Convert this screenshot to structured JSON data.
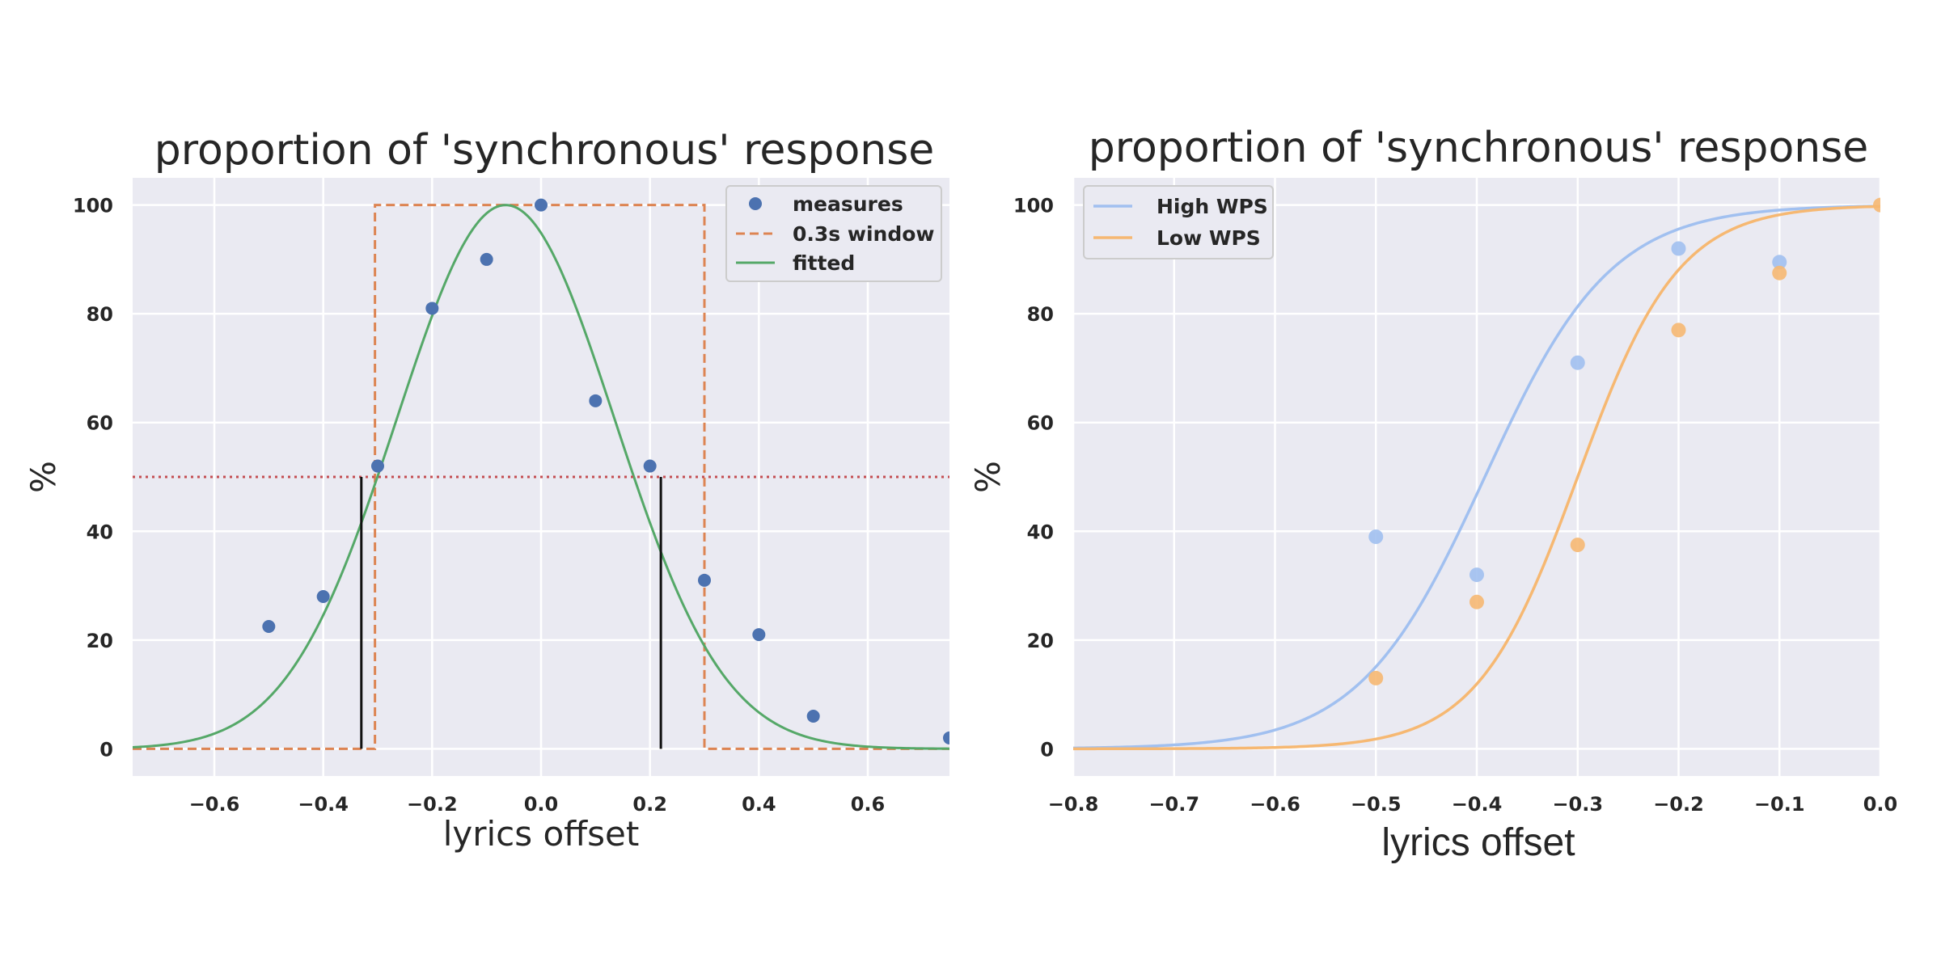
{
  "chart_data": [
    {
      "type": "scatter",
      "title": "proportion of 'synchronous' response",
      "xlabel": "lyrics offset",
      "ylabel": "%",
      "xlim": [
        -0.75,
        0.75
      ],
      "ylim": [
        -5,
        105
      ],
      "xticks": [
        -0.6,
        -0.4,
        -0.2,
        0.0,
        0.2,
        0.4,
        0.6
      ],
      "xtick_labels": [
        "−0.6",
        "−0.4",
        "−0.2",
        "0.0",
        "0.2",
        "0.4",
        "0.6"
      ],
      "yticks": [
        0,
        20,
        40,
        60,
        80,
        100
      ],
      "ytick_labels": [
        "0",
        "20",
        "40",
        "60",
        "80",
        "100"
      ],
      "grid": true,
      "legend_position": "top-right",
      "series": [
        {
          "name": "measures",
          "kind": "scatter",
          "color": "#4c72b0",
          "x": [
            -0.5,
            -0.4,
            -0.3,
            -0.2,
            -0.1,
            0.0,
            0.1,
            0.2,
            0.3,
            0.4,
            0.5,
            0.75
          ],
          "y": [
            22.5,
            28,
            52,
            81,
            90,
            100,
            64,
            52,
            31,
            21,
            6,
            2
          ]
        },
        {
          "name": "0.3s window",
          "kind": "line",
          "dash": "dashed",
          "color": "#dd8452",
          "x": [
            -0.75,
            -0.305,
            -0.305,
            0.3,
            0.3,
            0.75
          ],
          "y": [
            0,
            0,
            100,
            100,
            0,
            0
          ]
        },
        {
          "name": "fitted",
          "kind": "curve",
          "color": "#55a868",
          "model": "gaussian",
          "mu": -0.065,
          "sigma": 0.2,
          "amplitude": 100
        }
      ],
      "hline": {
        "y": 50,
        "color": "#c44e52",
        "style": "dotted"
      },
      "vlines": [
        {
          "x": -0.33,
          "ymin": 0,
          "ymax": 50,
          "color": "#111111"
        },
        {
          "x": 0.22,
          "ymin": 0,
          "ymax": 50,
          "color": "#111111"
        }
      ]
    },
    {
      "type": "scatter",
      "title": "proportion of 'synchronous' response",
      "xlabel": "lyrics offset",
      "ylabel": "%",
      "xlim": [
        -0.8,
        0.0
      ],
      "ylim": [
        -5,
        105
      ],
      "xticks": [
        -0.8,
        -0.7,
        -0.6,
        -0.5,
        -0.4,
        -0.3,
        -0.2,
        -0.1,
        0.0
      ],
      "xtick_labels": [
        "−0.8",
        "−0.7",
        "−0.6",
        "−0.5",
        "−0.4",
        "−0.3",
        "−0.2",
        "−0.1",
        "0.0"
      ],
      "yticks": [
        0,
        20,
        40,
        60,
        80,
        100
      ],
      "ytick_labels": [
        "0",
        "20",
        "40",
        "60",
        "80",
        "100"
      ],
      "grid": true,
      "legend_position": "top-left",
      "series": [
        {
          "name": "High WPS",
          "color": "#a1c0f0",
          "x": [
            -0.5,
            -0.4,
            -0.3,
            -0.2,
            -0.1
          ],
          "y": [
            39,
            32,
            71,
            92,
            89.5
          ],
          "fit": {
            "model": "logistic",
            "x0": -0.392,
            "k": 16
          }
        },
        {
          "name": "Low WPS",
          "color": "#f6b872",
          "x": [
            -0.5,
            -0.4,
            -0.3,
            -0.2,
            -0.1,
            0.0
          ],
          "y": [
            13,
            27,
            37.5,
            77,
            87.5,
            100
          ],
          "fit": {
            "model": "logistic",
            "x0": -0.3,
            "k": 20
          }
        }
      ]
    }
  ]
}
